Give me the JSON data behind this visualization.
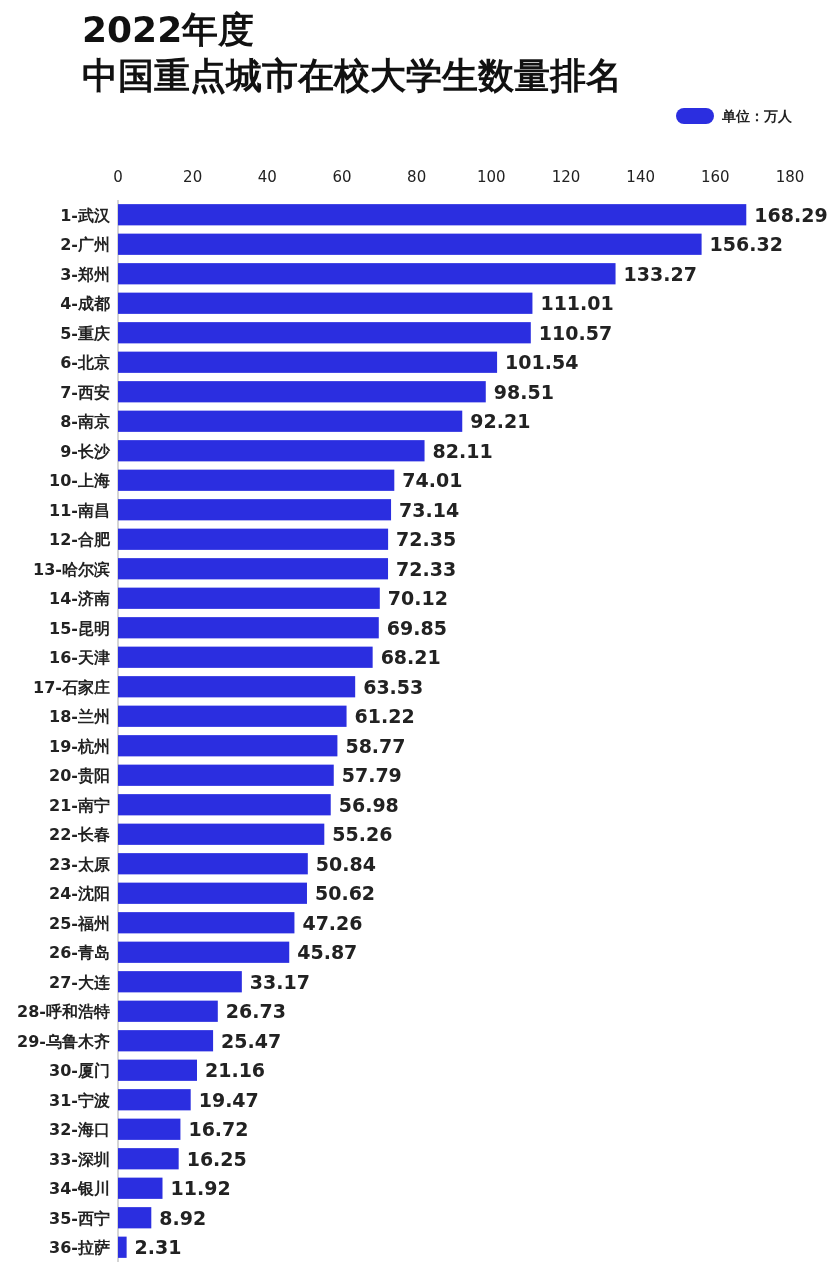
{
  "chart_data": {
    "type": "bar",
    "orientation": "horizontal",
    "subtitle": "2022年度",
    "title": "中国重点城市在校大学生数量排名",
    "categories": [
      "1-武汉",
      "2-广州",
      "3-郑州",
      "4-成都",
      "5-重庆",
      "6-北京",
      "7-西安",
      "8-南京",
      "9-长沙",
      "10-上海",
      "11-南昌",
      "12-合肥",
      "13-哈尔滨",
      "14-济南",
      "15-昆明",
      "16-天津",
      "17-石家庄",
      "18-兰州",
      "19-杭州",
      "20-贵阳",
      "21-南宁",
      "22-长春",
      "23-太原",
      "24-沈阳",
      "25-福州",
      "26-青岛",
      "27-大连",
      "28-呼和浩特",
      "29-乌鲁木齐",
      "30-厦门",
      "31-宁波",
      "32-海口",
      "33-深圳",
      "34-银川",
      "35-西宁",
      "36-拉萨"
    ],
    "series": [
      {
        "name": "单位：万人",
        "color": "#2b2ee0",
        "values": [
          168.29,
          156.32,
          133.27,
          111.01,
          110.57,
          101.54,
          98.51,
          92.21,
          82.11,
          74.01,
          73.14,
          72.35,
          72.33,
          70.12,
          69.85,
          68.21,
          63.53,
          61.22,
          58.77,
          57.79,
          56.98,
          55.26,
          50.84,
          50.62,
          47.26,
          45.87,
          33.17,
          26.73,
          25.47,
          21.16,
          19.47,
          16.72,
          16.25,
          11.92,
          8.92,
          2.31
        ]
      }
    ],
    "xlim": [
      0,
      180
    ],
    "xticks": [
      0,
      20,
      40,
      60,
      80,
      100,
      120,
      140,
      160,
      180
    ],
    "data_labels": true,
    "legend": "top right",
    "grid": false
  }
}
